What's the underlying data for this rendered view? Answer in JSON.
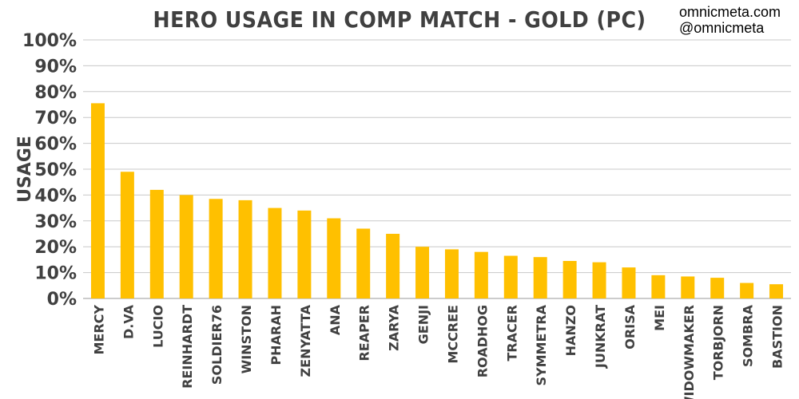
{
  "credits": {
    "line1": "omnicmeta.com",
    "line2": "@omnicmeta"
  },
  "colors": {
    "bar": "#ffc000",
    "text": "#404040",
    "grid": "#c8c8c8"
  },
  "chart_data": {
    "type": "bar",
    "title": "HERO USAGE IN COMP MATCH - GOLD (PC)",
    "xlabel": "",
    "ylabel": "USAGE",
    "ylim": [
      0,
      100
    ],
    "yticks": [
      "0%",
      "10%",
      "20%",
      "30%",
      "40%",
      "50%",
      "60%",
      "70%",
      "80%",
      "90%",
      "100%"
    ],
    "grid": true,
    "legend": "none",
    "categories": [
      "MERCY",
      "D.VA",
      "LUCIO",
      "REINHARDT",
      "SOLDIER76",
      "WINSTON",
      "PHARAH",
      "ZENYATTA",
      "ANA",
      "REAPER",
      "ZARYA",
      "GENJI",
      "MCCREE",
      "ROADHOG",
      "TRACER",
      "SYMMETRA",
      "HANZO",
      "JUNKRAT",
      "ORISA",
      "MEI",
      "WIDOWMAKER",
      "TORBJORN",
      "SOMBRA",
      "BASTION"
    ],
    "values": [
      75.5,
      49,
      42,
      40,
      38.5,
      38,
      35,
      34,
      31,
      27,
      25,
      20,
      19,
      18,
      16.5,
      16,
      14.5,
      14,
      12,
      9,
      8.5,
      8,
      6,
      5.5
    ]
  }
}
